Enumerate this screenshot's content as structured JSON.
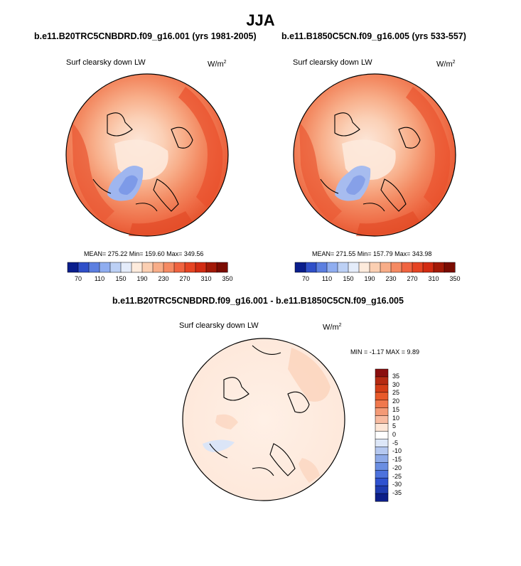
{
  "title": "JJA",
  "panels": [
    {
      "case_title": "b.e11.B20TRC5CNBDRD.f09_g16.001 (yrs 1981-2005)",
      "variable": "Surf clearsky down LW",
      "units_base": "W/m",
      "units_exp": "2",
      "stats": "MEAN= 275.22  Min= 159.60  Max= 349.56"
    },
    {
      "case_title": "b.e11.B1850C5CN.f09_g16.005 (yrs 533-557)",
      "variable": "Surf clearsky down LW",
      "units_base": "W/m",
      "units_exp": "2",
      "stats": "MEAN= 271.55  Min= 157.79  Max= 343.98"
    }
  ],
  "diff_panel": {
    "case_title": "b.e11.B20TRC5CNBDRD.f09_g16.001 - b.e11.B1850C5CN.f09_g16.005",
    "variable": "Surf clearsky down LW",
    "units_base": "W/m",
    "units_exp": "2",
    "stats": "MIN =  -1.17 MAX =   9.89"
  },
  "colorbar_abs": {
    "labels": [
      "70",
      "110",
      "150",
      "190",
      "230",
      "270",
      "310",
      "350"
    ],
    "colors": [
      "#0a1e8c",
      "#2f4fc8",
      "#5c7fe0",
      "#8fadf0",
      "#bcd0f5",
      "#e4ecfa",
      "#fdebdc",
      "#fbcfb2",
      "#f8ad88",
      "#f58a63",
      "#f06440",
      "#e64423",
      "#d22b12",
      "#a21907",
      "#7a0c02"
    ]
  },
  "colorbar_diff": {
    "labels": [
      "35",
      "30",
      "25",
      "20",
      "15",
      "10",
      "5",
      "0",
      "-5",
      "-10",
      "-15",
      "-20",
      "-25",
      "-30",
      "-35"
    ],
    "colors": [
      "#8a0e0e",
      "#b52a12",
      "#d33d17",
      "#e85a2a",
      "#f0784d",
      "#f49a76",
      "#f8bba0",
      "#fde6d6",
      "#ffffff",
      "#dde7f8",
      "#b5c8f0",
      "#8eaae8",
      "#6a8ee2",
      "#4d72dd",
      "#2f52d0",
      "#1e3bb0",
      "#0c1e88"
    ]
  }
}
